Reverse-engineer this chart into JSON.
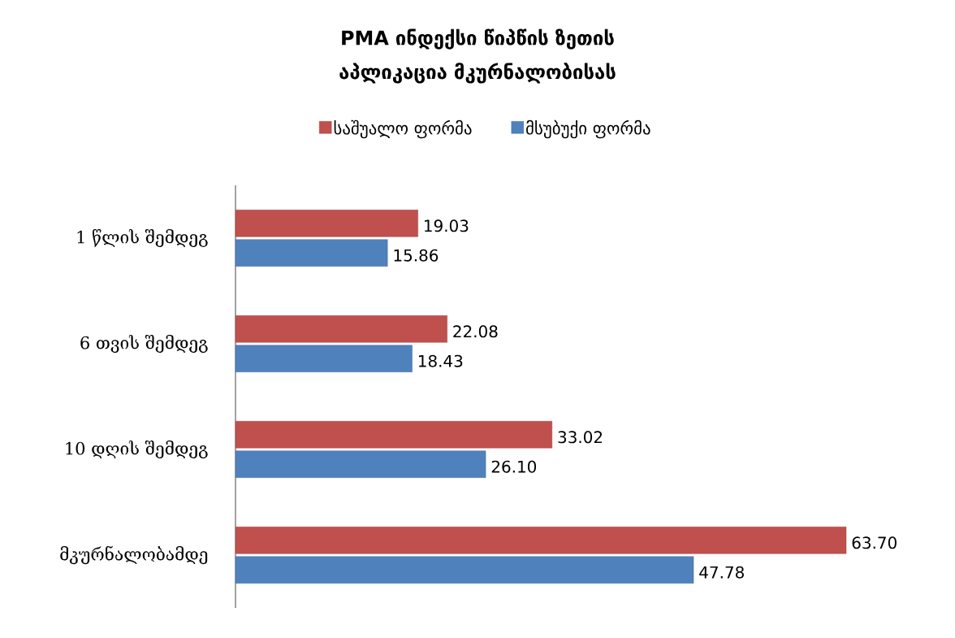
{
  "chart_data": {
    "type": "bar",
    "orientation": "horizontal",
    "title": "PMA ინდექსი წიპწის ზეთის აპლიკაცია მკურნალობისას",
    "categories": [
      "1 წლის შემდეგ",
      "6 თვის  შემდეგ",
      "10 დღის შემდეგ",
      "მკურნალობამდე"
    ],
    "series": [
      {
        "name": "საშუალო ფორმა",
        "color": "#c0504d",
        "values": [
          19.03,
          22.08,
          33.02,
          63.7
        ],
        "value_labels": [
          "19.03",
          "22.08",
          "33.02",
          "63.70"
        ]
      },
      {
        "name": "მსუბუქი ფორმა",
        "color": "#4f81bd",
        "values": [
          15.86,
          18.43,
          26.1,
          47.78
        ],
        "value_labels": [
          "15.86",
          "18.43",
          "26.10",
          "47.78"
        ]
      }
    ],
    "legend": "top",
    "tick_labels": "y"
  }
}
